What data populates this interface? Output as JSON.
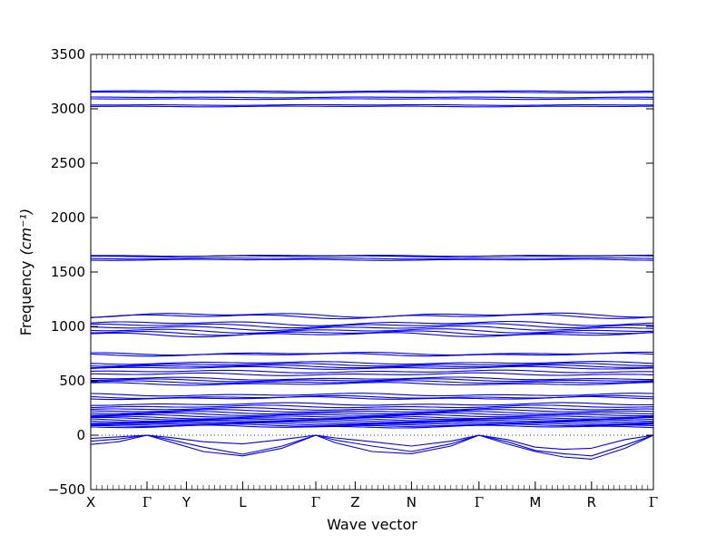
{
  "chart_data": {
    "type": "line",
    "xlabel": "Wave vector",
    "ylabel": "Frequency",
    "ylabel_unit": "(cm⁻¹)",
    "ylim": [
      -500,
      3500
    ],
    "yticks": [
      -500,
      0,
      500,
      1000,
      1500,
      2000,
      2500,
      3000,
      3500
    ],
    "grid": false,
    "zero_line": "dotted",
    "line_color": "#0000ff",
    "path_labels": [
      "X",
      "Γ",
      "Y",
      "L",
      "Γ",
      "Z",
      "N",
      "Γ",
      "M",
      "R",
      "Γ"
    ],
    "path_positions": [
      0,
      1,
      1.7,
      2.7,
      4,
      4.7,
      5.7,
      6.9,
      7.9,
      8.9,
      10
    ],
    "xlim": [
      0,
      10
    ],
    "flat_bands": [
      3162,
      3150,
      3105,
      3090,
      3035,
      3022,
      1650,
      1645,
      1625,
      1612,
      1105,
      1092,
      1028,
      1008,
      985,
      960,
      940,
      925,
      750,
      740,
      665,
      648,
      632,
      618,
      585,
      560,
      520,
      505,
      488,
      472,
      372,
      350,
      340,
      285,
      262,
      240,
      222,
      205,
      190,
      175,
      160,
      150,
      138,
      128,
      118,
      108,
      98,
      88,
      78
    ],
    "acoustic_bands": [
      {
        "x": [
          0,
          0.5,
          1,
          1.4,
          2,
          2.7,
          3.4,
          4,
          4.35,
          5,
          5.7,
          6.4,
          6.9,
          7.4,
          7.9,
          8.4,
          8.9,
          9.5,
          10
        ],
        "y": [
          -85,
          -60,
          0,
          -60,
          -150,
          -190,
          -120,
          0,
          -70,
          -150,
          -170,
          -100,
          0,
          -80,
          -150,
          -200,
          -220,
          -120,
          0
        ]
      },
      {
        "x": [
          0,
          0.5,
          1,
          1.4,
          2,
          2.7,
          3.4,
          4,
          4.35,
          5,
          5.7,
          6.4,
          6.9,
          7.4,
          7.9,
          8.4,
          8.9,
          9.5,
          10
        ],
        "y": [
          -55,
          -35,
          0,
          -40,
          -110,
          -175,
          -100,
          0,
          -45,
          -100,
          -150,
          -80,
          0,
          -60,
          -140,
          -170,
          -190,
          -90,
          0
        ]
      },
      {
        "x": [
          0,
          0.5,
          1,
          1.4,
          2,
          2.7,
          3.4,
          4,
          4.35,
          5,
          5.7,
          6.4,
          6.9,
          7.4,
          7.9,
          8.4,
          8.9,
          9.5,
          10
        ],
        "y": [
          -30,
          -15,
          0,
          -20,
          -60,
          -80,
          -40,
          0,
          -25,
          -60,
          -100,
          -55,
          0,
          -40,
          -110,
          -130,
          -120,
          -40,
          0
        ]
      }
    ]
  }
}
